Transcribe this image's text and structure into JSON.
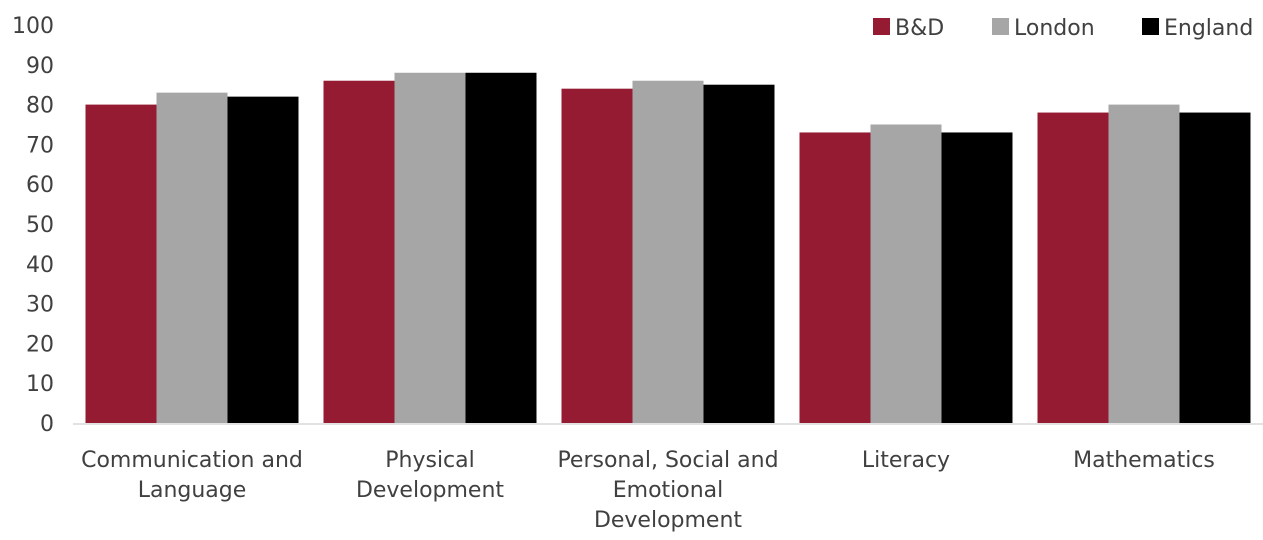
{
  "chart_data": {
    "type": "bar",
    "title": "",
    "xlabel": "",
    "ylabel": "",
    "ylim": [
      0,
      100
    ],
    "yticks": [
      0,
      10,
      20,
      30,
      40,
      50,
      60,
      70,
      80,
      90,
      100
    ],
    "grid": false,
    "legend_position": "top-right",
    "categories": [
      [
        "Communication and",
        "Language"
      ],
      [
        "Physical",
        "Development"
      ],
      [
        "Personal, Social and",
        "Emotional",
        "Development"
      ],
      [
        "Literacy"
      ],
      [
        "Mathematics"
      ]
    ],
    "series": [
      {
        "name": "B&D",
        "color": "#941b32",
        "values": [
          80,
          86,
          84,
          73,
          78
        ]
      },
      {
        "name": "London",
        "color": "#a6a6a6",
        "values": [
          83,
          88,
          86,
          75,
          80
        ]
      },
      {
        "name": "England",
        "color": "#000000",
        "values": [
          82,
          88,
          85,
          73,
          78
        ]
      }
    ]
  }
}
